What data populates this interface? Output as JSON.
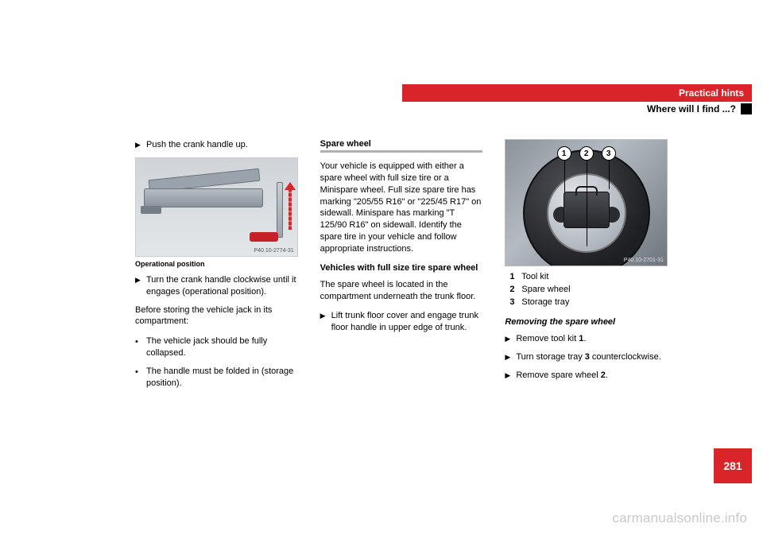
{
  "header": {
    "section": "Practical hints",
    "subsection": "Where will I find ...?"
  },
  "col1": {
    "step1": "Push the crank handle up.",
    "fig_ref": "P40.10-2774-31",
    "caption": "Operational position",
    "step2": "Turn the crank handle clockwise until it engages (operational position).",
    "para1": "Before storing the vehicle jack in its compartment:",
    "bullet1": "The vehicle jack should be fully collapsed.",
    "bullet2": "The handle must be folded in (storage position)."
  },
  "col2": {
    "heading": "Spare wheel",
    "para1": "Your vehicle is equipped with either a spare wheel with full size tire or a Minispare wheel. Full size spare tire has marking \"205/55 R16\" or \"225/45 R17\" on sidewall. Minispare has marking \"T 125/90 R16\" on sidewall. Identify the spare tire in your vehicle and follow appropriate instructions.",
    "subheading": "Vehicles with full size tire spare wheel",
    "para2": "The spare wheel is located in the compartment underneath the trunk floor.",
    "step1": "Lift trunk floor cover and engage trunk floor handle in upper edge of trunk."
  },
  "col3": {
    "fig_ref": "P40.10-2701-31",
    "callout1": "1",
    "callout2": "2",
    "callout3": "3",
    "legend1_num": "1",
    "legend1_txt": " Tool kit",
    "legend2_num": "2",
    "legend2_txt": " Spare wheel",
    "legend3_num": "3",
    "legend3_txt": " Storage tray",
    "subheading": "Removing the spare wheel",
    "step1_a": "Remove tool kit ",
    "step1_b": "1",
    "step1_c": ".",
    "step2_a": "Turn storage tray ",
    "step2_b": "3",
    "step2_c": " counterclockwise.",
    "step3_a": "Remove spare wheel ",
    "step3_b": "2",
    "step3_c": "."
  },
  "page_number": "281",
  "watermark": "carmanualsonline.info",
  "colors": {
    "accent_red": "#d9252a",
    "text": "#000000",
    "bg": "#ffffff",
    "gray_border": "#b0b0b0"
  }
}
